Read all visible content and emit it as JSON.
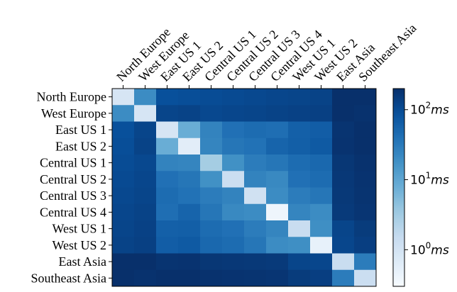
{
  "chart_data": {
    "type": "heatmap",
    "title": "",
    "xlabel": "",
    "ylabel": "",
    "rows": [
      "North Europe",
      "West Europe",
      "East US 1",
      "East US 2",
      "Central US 1",
      "Central US 2",
      "Central US 3",
      "Central US 4",
      "West US 1",
      "West US 2",
      "East Asia",
      "Southeast Asia"
    ],
    "columns": [
      "North Europe",
      "West Europe",
      "East US 1",
      "East US 2",
      "Central US 1",
      "Central US 2",
      "Central US 3",
      "Central US 4",
      "West US 1",
      "West US 2",
      "East Asia",
      "Southeast Asia"
    ],
    "values": [
      [
        0.9,
        20,
        90,
        95,
        100,
        105,
        110,
        115,
        120,
        125,
        200,
        210
      ],
      [
        20,
        0.9,
        120,
        125,
        110,
        115,
        120,
        125,
        130,
        135,
        210,
        190
      ],
      [
        90,
        120,
        0.9,
        8,
        25,
        40,
        45,
        42,
        60,
        65,
        180,
        200
      ],
      [
        95,
        125,
        8,
        0.6,
        24,
        35,
        38,
        55,
        62,
        70,
        185,
        205
      ],
      [
        100,
        110,
        25,
        24,
        3,
        18,
        30,
        35,
        45,
        50,
        170,
        190
      ],
      [
        105,
        115,
        40,
        35,
        18,
        1.3,
        25,
        22,
        40,
        45,
        165,
        185
      ],
      [
        110,
        120,
        45,
        38,
        30,
        25,
        1.1,
        20,
        30,
        35,
        160,
        180
      ],
      [
        115,
        125,
        42,
        55,
        35,
        22,
        20,
        0.4,
        24,
        20,
        155,
        175
      ],
      [
        120,
        130,
        60,
        62,
        45,
        40,
        30,
        24,
        1.4,
        19,
        120,
        150
      ],
      [
        125,
        135,
        65,
        70,
        50,
        45,
        35,
        20,
        19,
        0.5,
        115,
        140
      ],
      [
        200,
        210,
        180,
        185,
        170,
        165,
        160,
        155,
        120,
        115,
        1.4,
        30
      ],
      [
        210,
        190,
        200,
        205,
        190,
        185,
        180,
        175,
        150,
        140,
        30,
        1.3
      ]
    ],
    "colormap": "Blues",
    "color_scale": "log",
    "color_range": [
      0.3,
      200
    ],
    "colorbar": {
      "ticks": [
        {
          "base": "10",
          "exp": "0",
          "unit": "ms",
          "value": 1
        },
        {
          "base": "10",
          "exp": "1",
          "unit": "ms",
          "value": 10
        },
        {
          "base": "10",
          "exp": "2",
          "unit": "ms",
          "value": 100
        }
      ]
    }
  }
}
